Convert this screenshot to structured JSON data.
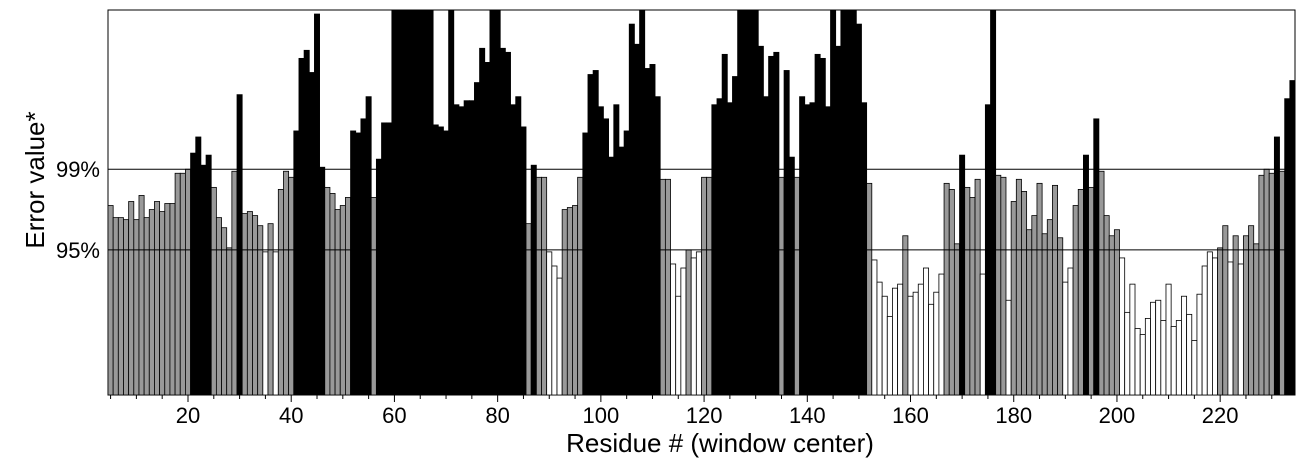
{
  "chart_data": {
    "type": "bar",
    "xlabel": "Residue # (window center)",
    "ylabel": "Error value*",
    "x_start": 5,
    "x_step": 1,
    "x_ticks": [
      20,
      40,
      60,
      80,
      100,
      120,
      140,
      160,
      180,
      200,
      220
    ],
    "y_ref_lines": [
      {
        "label": "99%",
        "value": 99
      },
      {
        "label": "95%",
        "value": 95
      }
    ],
    "ylim": [
      87.8,
      106.9
    ],
    "category_colors": {
      "low": "#ffffff",
      "mid": "#999999",
      "high": "#000000"
    },
    "values": [
      97.2,
      96.6,
      96.6,
      96.5,
      97.4,
      96.5,
      97.7,
      96.6,
      97.0,
      97.4,
      96.9,
      97.3,
      97.3,
      98.8,
      98.8,
      99.0,
      99.8,
      100.6,
      99.2,
      99.7,
      98.1,
      96.6,
      96.1,
      95.1,
      98.9,
      102.7,
      96.8,
      96.9,
      96.7,
      96.2,
      94.9,
      96.3,
      94.9,
      98.0,
      98.9,
      98.6,
      100.9,
      104.5,
      104.9,
      103.8,
      106.7,
      99.1,
      98.1,
      97.8,
      97.0,
      97.2,
      97.6,
      100.9,
      100.8,
      101.5,
      102.6,
      97.6,
      99.5,
      101.3,
      101.3,
      106.9,
      106.9,
      106.9,
      106.9,
      106.9,
      106.9,
      106.9,
      106.9,
      101.2,
      101.1,
      100.9,
      106.9,
      102.2,
      102.1,
      102.4,
      102.4,
      103.3,
      105.0,
      104.3,
      106.9,
      106.9,
      105.0,
      104.8,
      102.2,
      102.6,
      101.1,
      96.3,
      99.2,
      98.6,
      98.6,
      94.9,
      94.2,
      93.6,
      97.0,
      97.1,
      97.2,
      98.6,
      100.8,
      103.7,
      103.9,
      102.1,
      101.5,
      99.6,
      102.2,
      100.1,
      100.9,
      106.2,
      105.2,
      106.9,
      104.0,
      104.2,
      102.6,
      98.5,
      98.5,
      94.3,
      92.7,
      94.1,
      95.0,
      94.6,
      94.9,
      98.6,
      98.6,
      102.2,
      102.5,
      104.7,
      102.3,
      103.6,
      106.9,
      106.9,
      106.9,
      106.9,
      105.1,
      102.6,
      104.6,
      104.8,
      98.6,
      103.9,
      99.6,
      98.6,
      102.6,
      102.2,
      102.3,
      104.7,
      104.5,
      102.1,
      106.9,
      105.1,
      106.9,
      106.9,
      106.9,
      106.2,
      102.3,
      98.3,
      94.5,
      93.4,
      92.7,
      91.7,
      93.1,
      93.3,
      95.7,
      92.7,
      92.9,
      93.3,
      94.1,
      92.3,
      92.9,
      93.8,
      98.3,
      98.0,
      95.3,
      99.7,
      98.1,
      97.6,
      98.5,
      93.8,
      102.2,
      106.9,
      98.7,
      98.6,
      92.5,
      97.4,
      98.5,
      97.9,
      96.0,
      96.7,
      98.3,
      95.8,
      96.5,
      98.2,
      95.6,
      93.4,
      94.1,
      97.2,
      98.0,
      99.7,
      98.1,
      101.5,
      98.9,
      96.7,
      95.7,
      96.0,
      94.6,
      91.9,
      93.3,
      91.1,
      90.8,
      91.6,
      92.4,
      92.5,
      91.5,
      93.3,
      91.2,
      91.5,
      92.7,
      91.8,
      90.5,
      92.8,
      94.2,
      94.9,
      94.6,
      95.1,
      96.2,
      94.4,
      95.7,
      94.3,
      95.7,
      96.2,
      95.3,
      98.7,
      99.0,
      98.8,
      100.6,
      98.9,
      102.5,
      103.4
    ]
  }
}
